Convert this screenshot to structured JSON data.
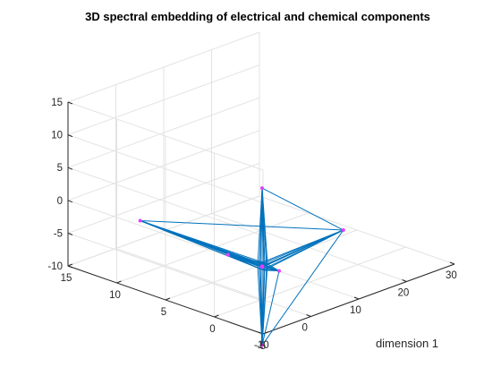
{
  "chart_data": {
    "type": "scatter3d-graph",
    "title": "3D spectral embedding of electrical and chemical components",
    "xlabel": "dimension 1",
    "ylabel": "",
    "zlabel": "",
    "xlim": [
      -10,
      30
    ],
    "ylim": [
      -5,
      15
    ],
    "zlim": [
      -10,
      15
    ],
    "xticks": [
      -10,
      0,
      10,
      20,
      30
    ],
    "yticks": [
      -5,
      0,
      5,
      10,
      15
    ],
    "zticks": [
      -10,
      -5,
      0,
      5,
      10,
      15
    ],
    "grid": true,
    "edge_color": "#0072bd",
    "node_color": "#e040fb",
    "hub": {
      "x": 0,
      "y": 0,
      "z": -5
    },
    "arms": [
      {
        "x": 0,
        "y": 0,
        "z": 7
      },
      {
        "x": 0,
        "y": 0,
        "z": -17
      },
      {
        "x": 1,
        "y": 13,
        "z": -5
      },
      {
        "x": 19,
        "y": 1,
        "z": -5
      },
      {
        "x": 0.5,
        "y": -1.5,
        "z": -5
      },
      {
        "x": 0,
        "y": 3.5,
        "z": -5
      }
    ],
    "cross_links": [
      [
        0,
        3
      ],
      [
        0,
        1
      ],
      [
        2,
        4
      ],
      [
        2,
        3
      ],
      [
        3,
        1
      ],
      [
        1,
        4
      ]
    ]
  }
}
